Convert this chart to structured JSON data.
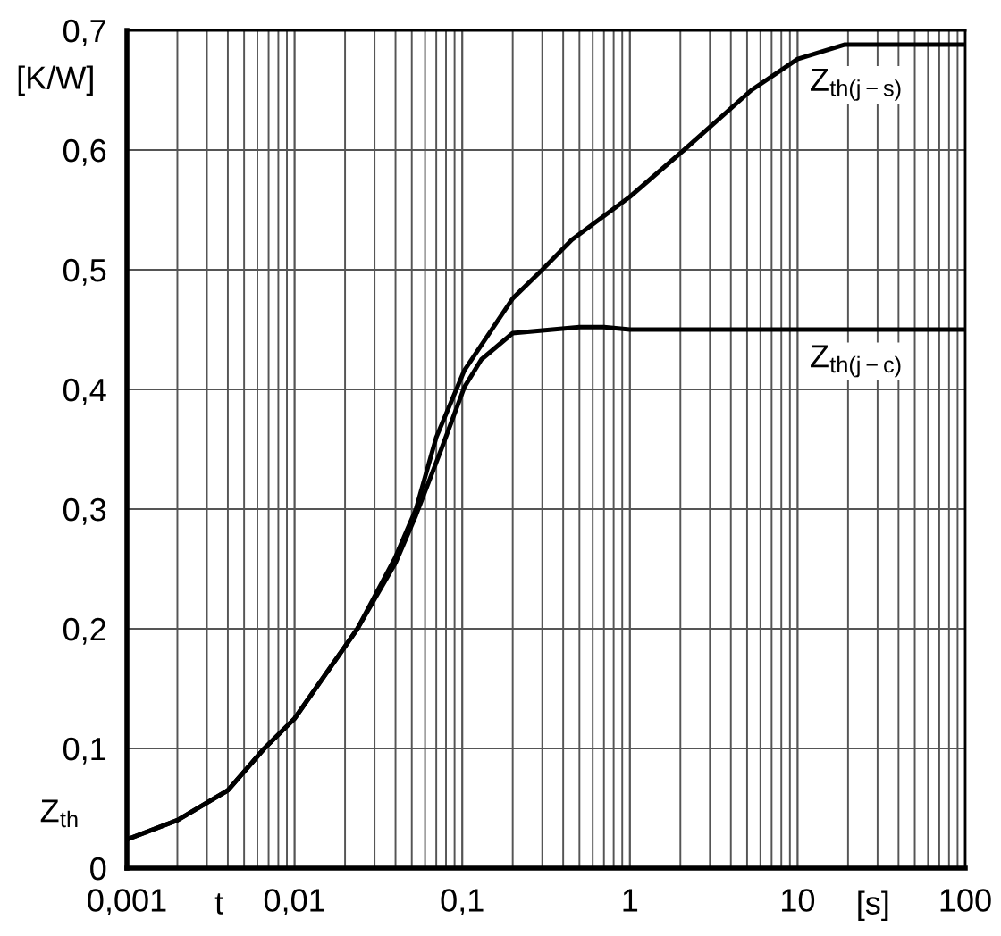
{
  "chart_data": {
    "type": "line",
    "xlabel": "t",
    "ylabel": "Z$_{th}$",
    "annotations": [
      "[K/W]",
      "[s]"
    ],
    "log": "x",
    "grid": true,
    "legend": false,
    "marker": "none",
    "line_style": "solid",
    "xlim": [
      0.001,
      100
    ],
    "xticks": [
      {
        "value": 0.001,
        "label": "0,001"
      },
      {
        "value": 0.01,
        "label": "0,01"
      },
      {
        "value": 0.1,
        "label": "0,1"
      },
      1,
      10,
      100
    ],
    "ylim": [
      0,
      0.7
    ],
    "yticks": [
      0,
      {
        "value": 0.1,
        "label": "0,1"
      },
      {
        "value": 0.2,
        "label": "0,2"
      },
      {
        "value": 0.3,
        "label": "0,3"
      },
      {
        "value": 0.4,
        "label": "0,4"
      },
      {
        "value": 0.5,
        "label": "0,5"
      },
      {
        "value": 0.6,
        "label": "0,6"
      },
      {
        "value": 0.7,
        "label": "0,7"
      }
    ],
    "series": [
      {
        "name": "Z$_{th(j−s)}$",
        "color": "#000000",
        "x": [
          0.001,
          0.002,
          0.004,
          0.0066,
          0.01,
          0.0237,
          0.04,
          0.053,
          0.07,
          0.103,
          0.2,
          0.3,
          0.45,
          1,
          2.1,
          5.3,
          10,
          19,
          100
        ],
        "values": [
          0.024,
          0.04,
          0.065,
          0.1,
          0.125,
          0.2,
          0.26,
          0.3,
          0.36,
          0.416,
          0.476,
          0.5,
          0.525,
          0.561,
          0.6,
          0.65,
          0.676,
          0.688,
          0.688
        ]
      },
      {
        "name": "Z$_{th(j−c)}$",
        "color": "#000000",
        "x": [
          0.001,
          0.002,
          0.004,
          0.0066,
          0.01,
          0.0237,
          0.04,
          0.053,
          0.075,
          0.103,
          0.13,
          0.2,
          0.5,
          0.7,
          1,
          100
        ],
        "values": [
          0.024,
          0.04,
          0.065,
          0.1,
          0.125,
          0.2,
          0.255,
          0.295,
          0.35,
          0.402,
          0.425,
          0.447,
          0.452,
          0.452,
          0.45,
          0.45
        ]
      }
    ]
  }
}
